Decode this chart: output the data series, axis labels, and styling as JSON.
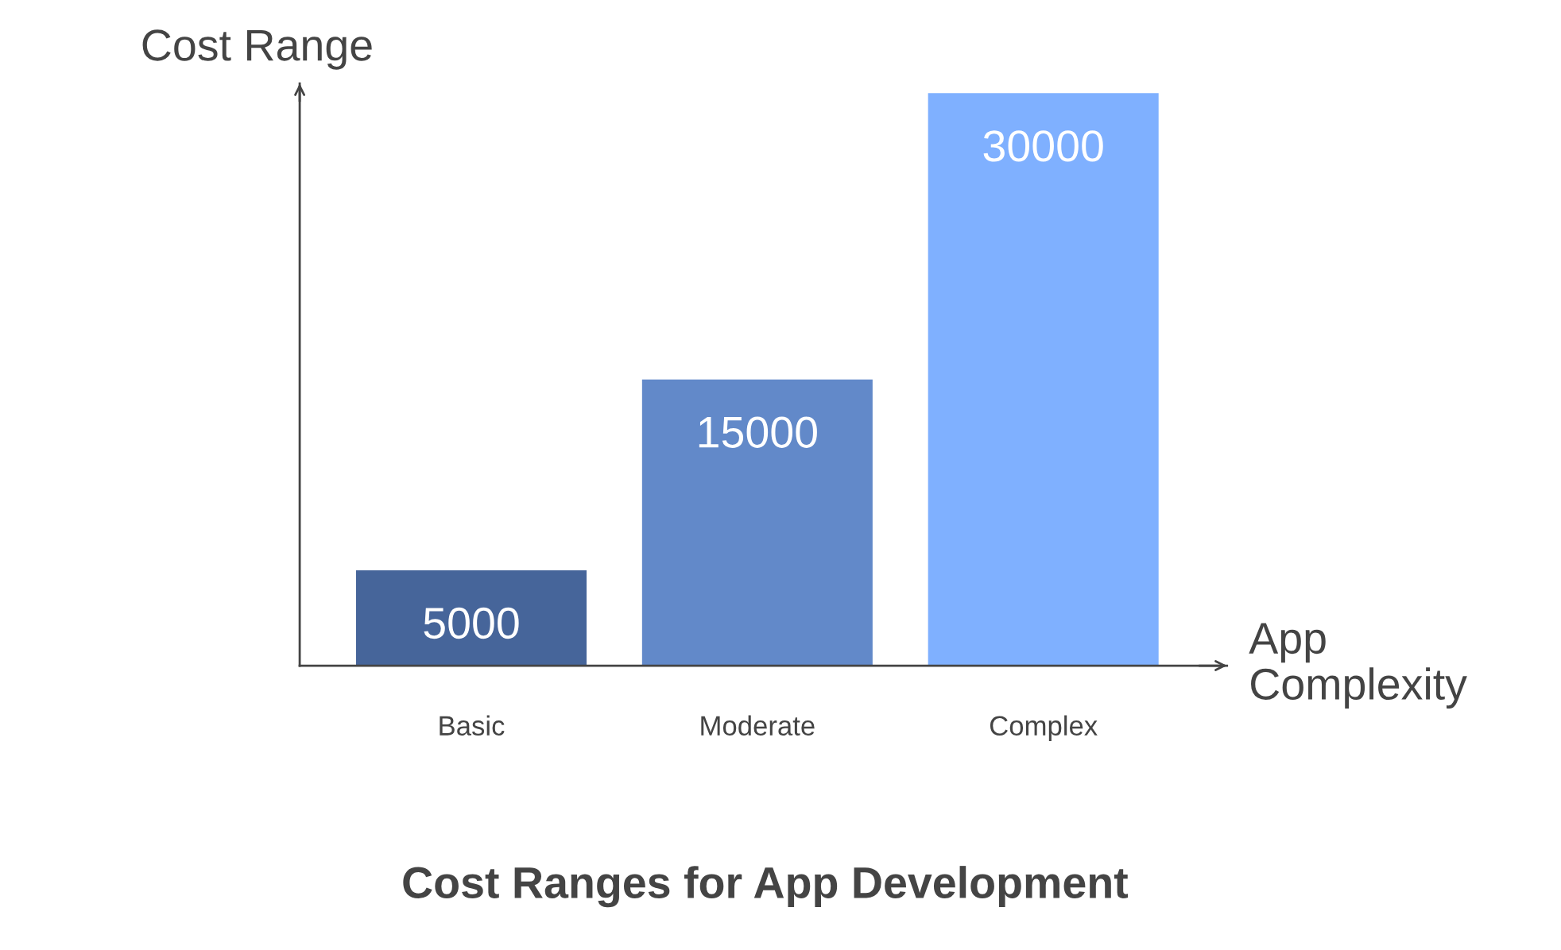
{
  "chart_data": {
    "type": "bar",
    "title": "Cost Ranges for App Development",
    "xlabel": "App\nComplexity",
    "ylabel": "Cost Range",
    "categories": [
      "Basic",
      "Moderate",
      "Complex"
    ],
    "values": [
      5000,
      15000,
      30000
    ],
    "colors": [
      "#46659a",
      "#6289c9",
      "#7fb0ff"
    ],
    "ylim": [
      0,
      30500
    ],
    "data_labels": true,
    "tick_labels": "x",
    "grid": false,
    "legend": false
  }
}
